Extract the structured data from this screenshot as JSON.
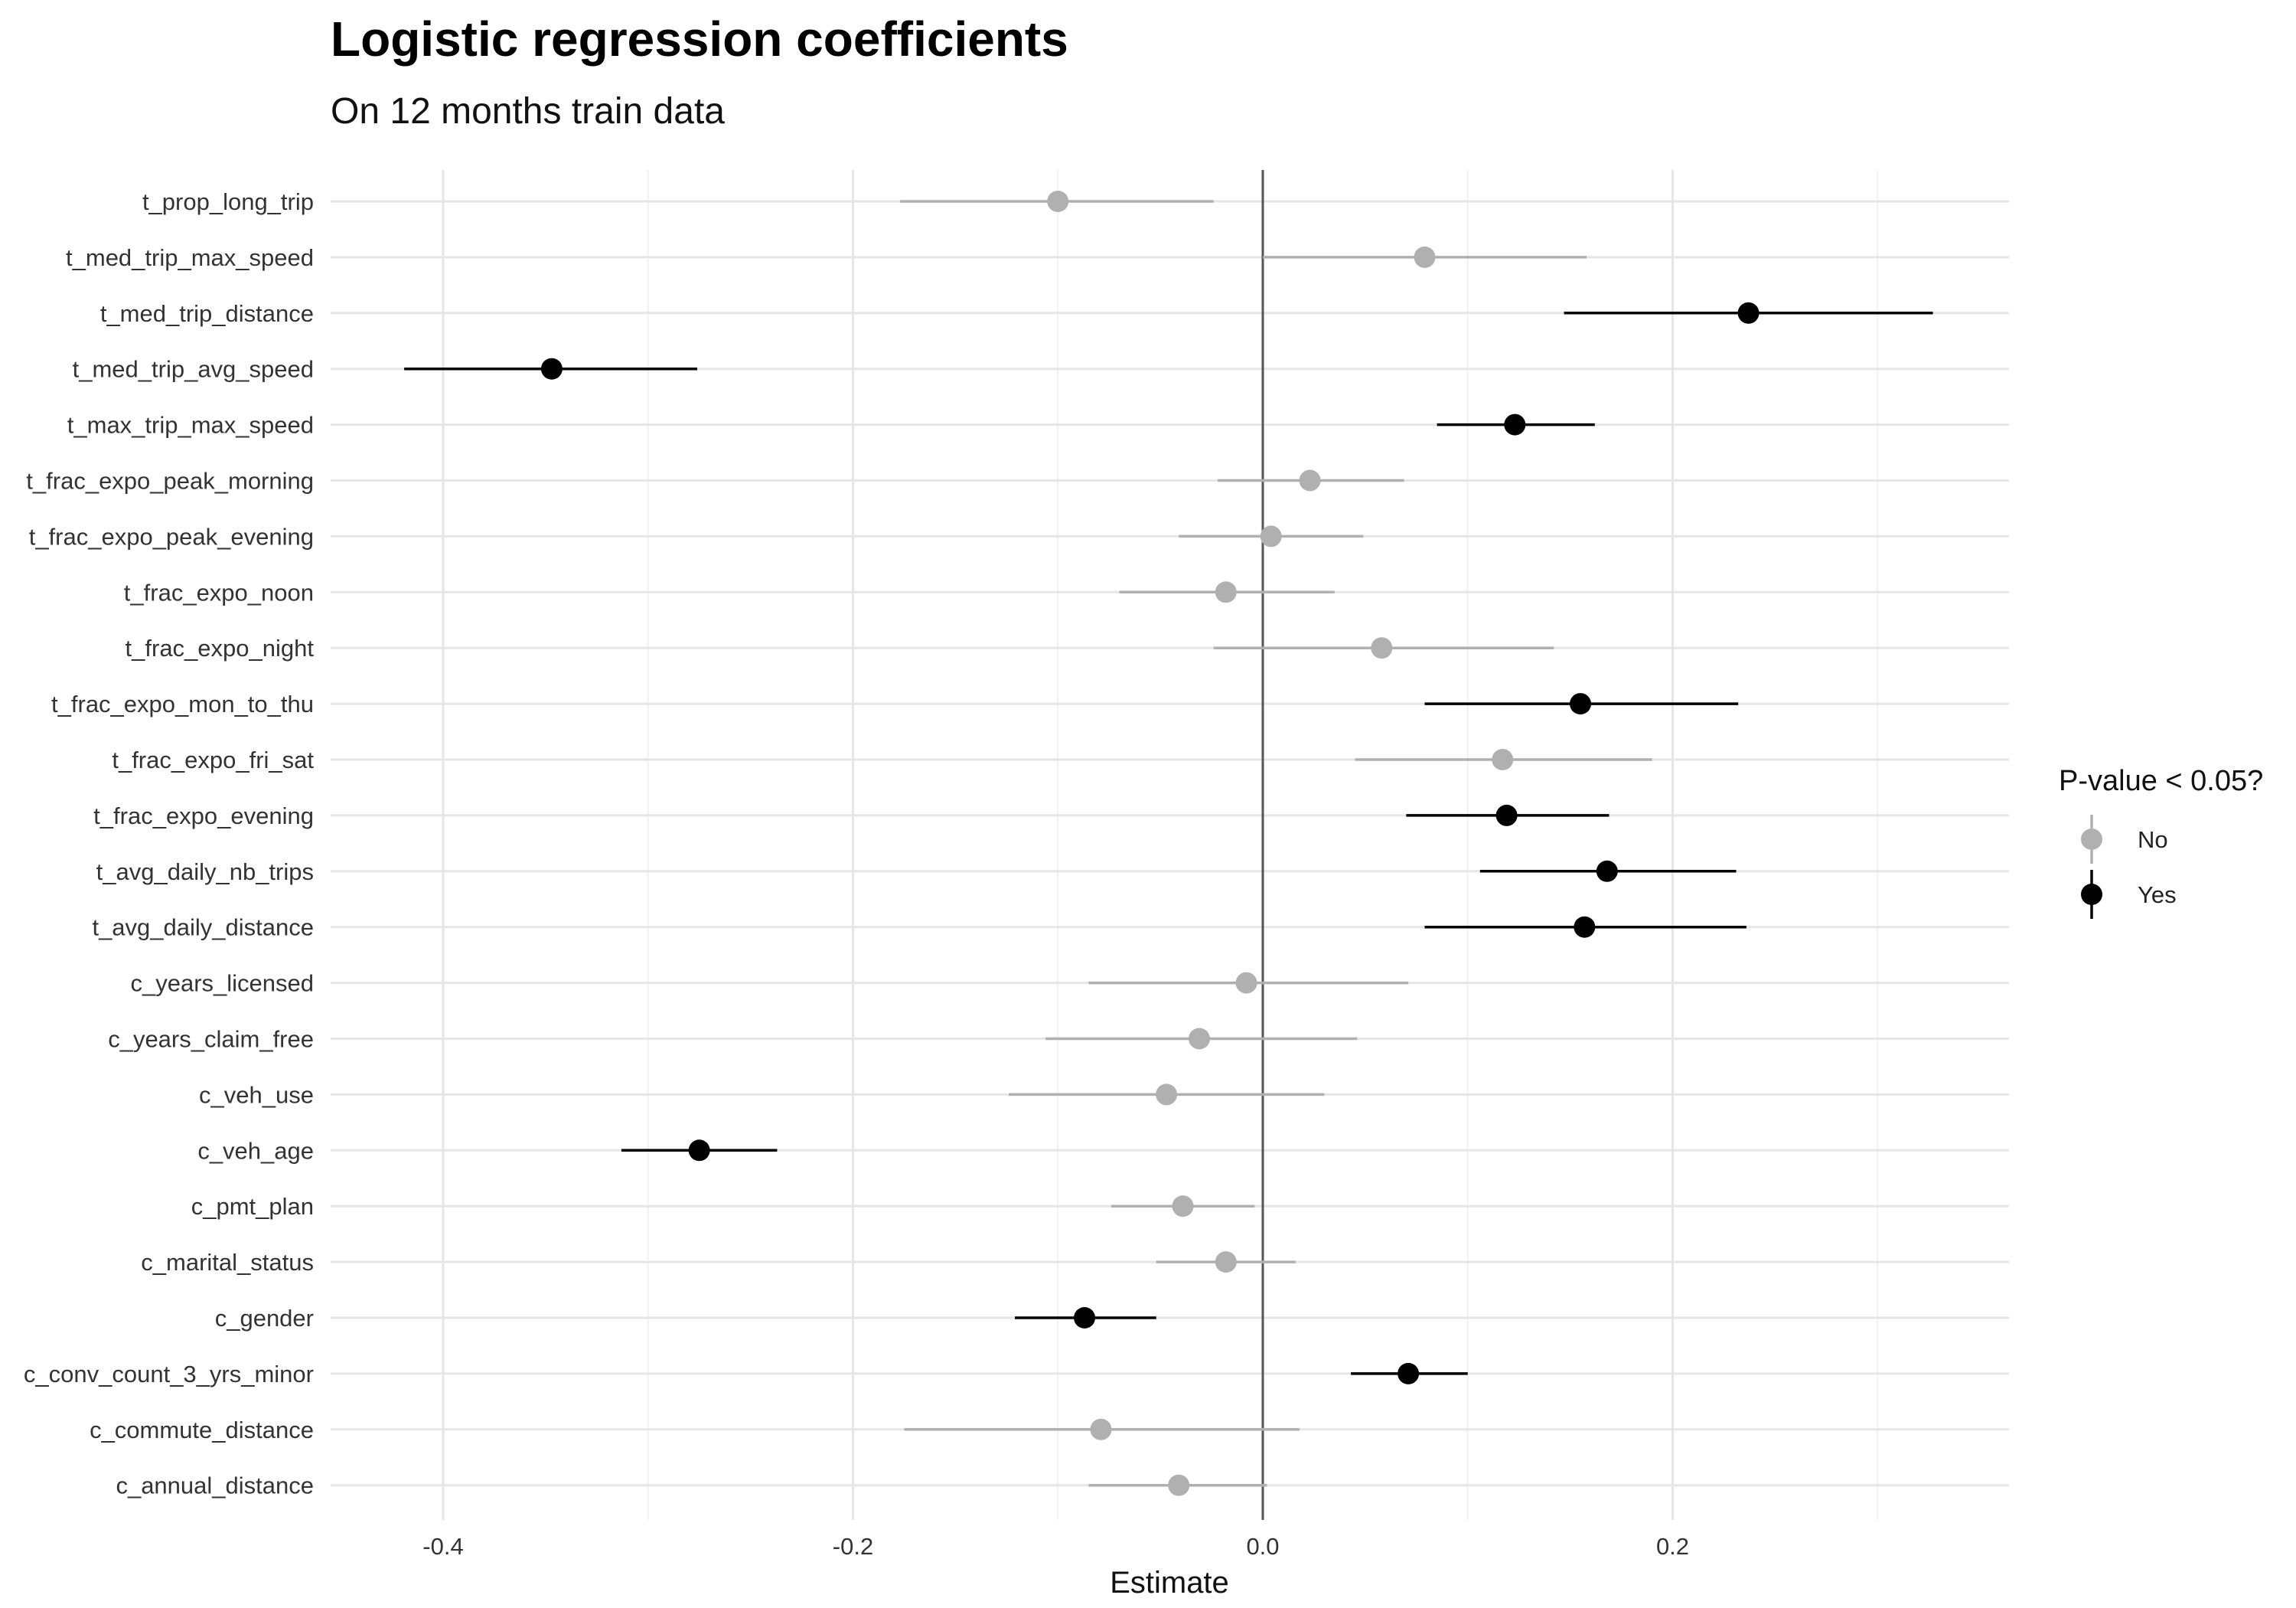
{
  "chart_data": {
    "type": "scatter",
    "title": "Logistic regression coefficients",
    "subtitle": "On 12 months train data",
    "xlabel": "Estimate",
    "ylabel": "",
    "xlim": [
      -0.43,
      0.365
    ],
    "x_ticks": [
      -0.4,
      -0.2,
      0.0,
      0.2
    ],
    "x_tick_labels": [
      "-0.4",
      "-0.2",
      "0.0",
      "0.2"
    ],
    "grid": true,
    "reference_line": 0,
    "legend": {
      "title": "P-value < 0.05?",
      "position": "right",
      "entries": [
        {
          "label": "No",
          "color": "#b0b0b0"
        },
        {
          "label": "Yes",
          "color": "#000000"
        }
      ]
    },
    "colors": {
      "No": "#b0b0b0",
      "Yes": "#000000"
    },
    "points": [
      {
        "term": "t_prop_long_trip",
        "estimate": -0.1,
        "low": -0.177,
        "high": -0.024,
        "significant": "No"
      },
      {
        "term": "t_med_trip_max_speed",
        "estimate": 0.079,
        "low": 0.0,
        "high": 0.158,
        "significant": "No"
      },
      {
        "term": "t_med_trip_distance",
        "estimate": 0.237,
        "low": 0.147,
        "high": 0.327,
        "significant": "Yes"
      },
      {
        "term": "t_med_trip_avg_speed",
        "estimate": -0.347,
        "low": -0.419,
        "high": -0.276,
        "significant": "Yes"
      },
      {
        "term": "t_max_trip_max_speed",
        "estimate": 0.123,
        "low": 0.085,
        "high": 0.162,
        "significant": "Yes"
      },
      {
        "term": "t_frac_expo_peak_morning",
        "estimate": 0.023,
        "low": -0.022,
        "high": 0.069,
        "significant": "No"
      },
      {
        "term": "t_frac_expo_peak_evening",
        "estimate": 0.004,
        "low": -0.041,
        "high": 0.049,
        "significant": "No"
      },
      {
        "term": "t_frac_expo_noon",
        "estimate": -0.018,
        "low": -0.07,
        "high": 0.035,
        "significant": "No"
      },
      {
        "term": "t_frac_expo_night",
        "estimate": 0.058,
        "low": -0.024,
        "high": 0.142,
        "significant": "No"
      },
      {
        "term": "t_frac_expo_mon_to_thu",
        "estimate": 0.155,
        "low": 0.079,
        "high": 0.232,
        "significant": "Yes"
      },
      {
        "term": "t_frac_expo_fri_sat",
        "estimate": 0.117,
        "low": 0.045,
        "high": 0.19,
        "significant": "No"
      },
      {
        "term": "t_frac_expo_evening",
        "estimate": 0.119,
        "low": 0.07,
        "high": 0.169,
        "significant": "Yes"
      },
      {
        "term": "t_avg_daily_nb_trips",
        "estimate": 0.168,
        "low": 0.106,
        "high": 0.231,
        "significant": "Yes"
      },
      {
        "term": "t_avg_daily_distance",
        "estimate": 0.157,
        "low": 0.079,
        "high": 0.236,
        "significant": "Yes"
      },
      {
        "term": "c_years_licensed",
        "estimate": -0.008,
        "low": -0.085,
        "high": 0.071,
        "significant": "No"
      },
      {
        "term": "c_years_claim_free",
        "estimate": -0.031,
        "low": -0.106,
        "high": 0.046,
        "significant": "No"
      },
      {
        "term": "c_veh_use",
        "estimate": -0.047,
        "low": -0.124,
        "high": 0.03,
        "significant": "No"
      },
      {
        "term": "c_veh_age",
        "estimate": -0.275,
        "low": -0.313,
        "high": -0.237,
        "significant": "Yes"
      },
      {
        "term": "c_pmt_plan",
        "estimate": -0.039,
        "low": -0.074,
        "high": -0.004,
        "significant": "No"
      },
      {
        "term": "c_marital_status",
        "estimate": -0.018,
        "low": -0.052,
        "high": 0.016,
        "significant": "No"
      },
      {
        "term": "c_gender",
        "estimate": -0.087,
        "low": -0.121,
        "high": -0.052,
        "significant": "Yes"
      },
      {
        "term": "c_conv_count_3_yrs_minor",
        "estimate": 0.071,
        "low": 0.043,
        "high": 0.1,
        "significant": "Yes"
      },
      {
        "term": "c_commute_distance",
        "estimate": -0.079,
        "low": -0.175,
        "high": 0.018,
        "significant": "No"
      },
      {
        "term": "c_annual_distance",
        "estimate": -0.041,
        "low": -0.085,
        "high": 0.002,
        "significant": "No"
      }
    ]
  }
}
